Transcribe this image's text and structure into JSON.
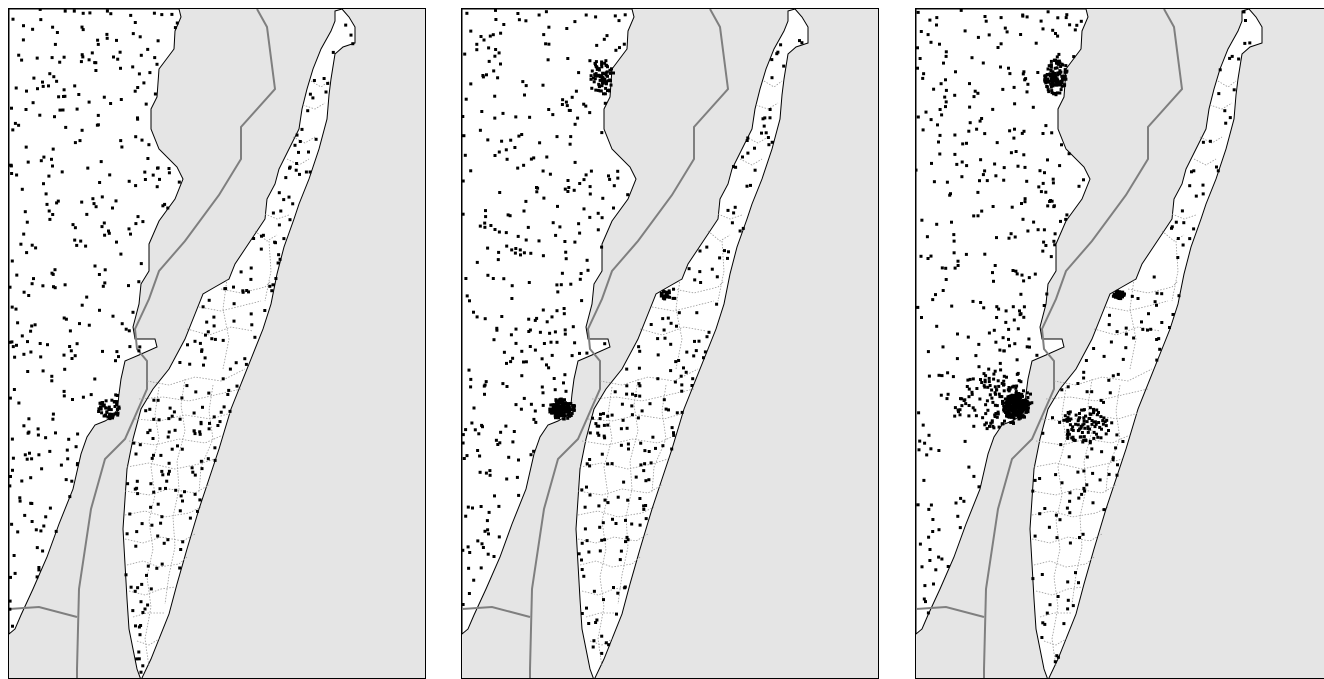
{
  "figure": {
    "panels": [
      {
        "id": "panel-1",
        "cluster": "small",
        "tip_cluster": false,
        "upper_cluster": false,
        "island_cluster": false
      },
      {
        "id": "panel-2",
        "cluster": "medium",
        "tip_cluster": true,
        "upper_cluster": true,
        "island_cluster": false
      },
      {
        "id": "panel-3",
        "cluster": "large",
        "tip_cluster": true,
        "upper_cluster": true,
        "island_cluster": true
      }
    ],
    "colors": {
      "water": "#e5e5e5",
      "land": "#ffffff",
      "coastline": "#000000",
      "border": "#7f7f7f",
      "district_lines": "#999999",
      "points": "#000000"
    },
    "legend": null
  }
}
